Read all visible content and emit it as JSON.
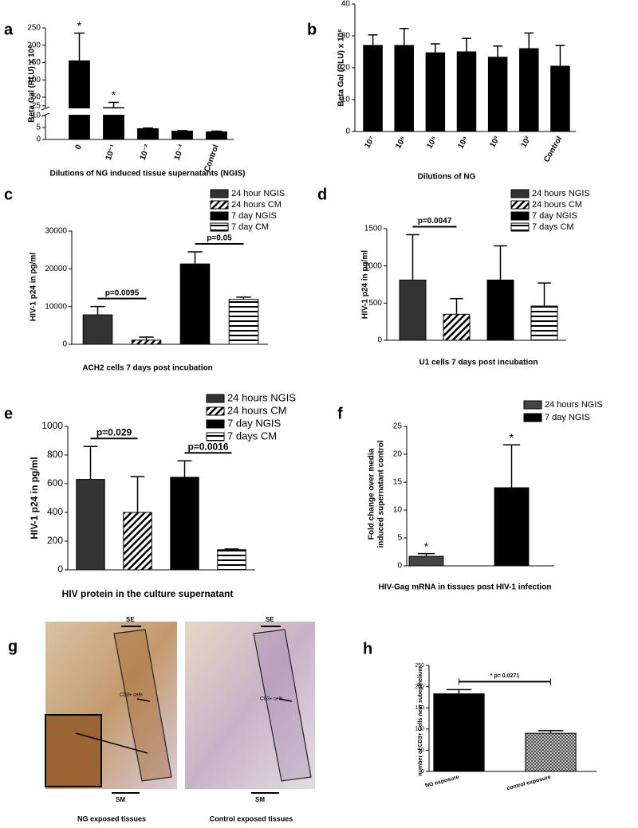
{
  "chart_data": [
    {
      "type": "bar",
      "label": "a",
      "ylabel": "Beta Gal (RLU) x 10⁶",
      "xlabel": "Dilutions of NG induced tissue supernatants (NGIS)",
      "categories": [
        "0",
        "10⁻¹",
        "10⁻²",
        "10⁻³",
        "Control"
      ],
      "values": [
        155,
        20,
        4.5,
        3.5,
        3.2
      ],
      "errors": [
        80,
        15,
        0.3,
        0.2,
        0.3
      ],
      "color": "#000000",
      "ylim": [
        0,
        250
      ],
      "ybreak": [
        10,
        20
      ],
      "yticks": [
        0,
        5,
        10,
        25,
        50,
        100,
        150,
        200,
        250
      ],
      "annotations": [
        {
          "text": "*",
          "bar": 0
        },
        {
          "text": "*",
          "bar": 1
        }
      ]
    },
    {
      "type": "bar",
      "label": "b",
      "ylabel": "Beta Gal (RLU) x 10⁶",
      "xlabel": "Dilutions of NG",
      "categories": [
        "10⁷",
        "10⁶",
        "10⁵",
        "10⁴",
        "10³",
        "10²",
        "Control"
      ],
      "values": [
        27,
        27,
        24.7,
        25,
        23.3,
        26,
        20.5
      ],
      "errors": [
        3.3,
        5.3,
        2.8,
        4.2,
        3.5,
        4.9,
        6.5
      ],
      "color": "#000000",
      "ylim": [
        0,
        40
      ],
      "yticks": [
        0,
        10,
        20,
        30,
        40
      ]
    },
    {
      "type": "bar",
      "label": "c",
      "ylabel": "HIV-1 p24 in pg/ml",
      "xlabel": "ACH2 cells 7 days post incubation",
      "series": [
        {
          "name": "24 hour NGIS",
          "color": "#333333",
          "pattern": "solid",
          "values": [
            7800
          ],
          "errors": [
            2200
          ]
        },
        {
          "name": "24 hours CM",
          "color": "#000000",
          "pattern": "diagonal",
          "values": [
            1100
          ],
          "errors": [
            800
          ]
        },
        {
          "name": "7 day NGIS",
          "color": "#000000",
          "pattern": "solid",
          "values": [
            21300
          ],
          "errors": [
            3200
          ]
        },
        {
          "name": "7 day CM",
          "color": "#000000",
          "pattern": "horizontal",
          "values": [
            11900
          ],
          "errors": [
            600
          ]
        }
      ],
      "ylim": [
        0,
        30000
      ],
      "yticks": [
        0,
        10000,
        20000,
        30000
      ],
      "brackets": [
        {
          "from": 0,
          "to": 1,
          "label": "p=0.0095"
        },
        {
          "from": 2,
          "to": 3,
          "label": "p=0.05"
        }
      ]
    },
    {
      "type": "bar",
      "label": "d",
      "ylabel": "HIV-1 p24 in pg/ml",
      "xlabel": "U1 cells 7 days post incubation",
      "series": [
        {
          "name": "24 hours  NGIS",
          "color": "#333333",
          "pattern": "solid",
          "values": [
            810
          ],
          "errors": [
            610
          ]
        },
        {
          "name": "24 hours CM",
          "color": "#000000",
          "pattern": "diagonal",
          "values": [
            350
          ],
          "errors": [
            210
          ]
        },
        {
          "name": "7 day  NGIS",
          "color": "#000000",
          "pattern": "solid",
          "values": [
            810
          ],
          "errors": [
            460
          ]
        },
        {
          "name": "7 days CM",
          "color": "#000000",
          "pattern": "horizontal",
          "values": [
            460
          ],
          "errors": [
            310
          ]
        }
      ],
      "ylim": [
        0,
        1500
      ],
      "yticks": [
        0,
        500,
        1000,
        1500
      ],
      "brackets": [
        {
          "from": 0,
          "to": 1,
          "label": "p=0.0047"
        }
      ]
    },
    {
      "type": "bar",
      "label": "e",
      "ylabel": "HIV-1 p24 in pg/ml",
      "xlabel": "HIV protein in the culture supernatant",
      "series": [
        {
          "name": "24 hours  NGIS",
          "color": "#333333",
          "pattern": "solid",
          "values": [
            630
          ],
          "errors": [
            230
          ]
        },
        {
          "name": "24 hours CM",
          "color": "#000000",
          "pattern": "diagonal",
          "values": [
            400
          ],
          "errors": [
            250
          ]
        },
        {
          "name": "7 day NGIS",
          "color": "#000000",
          "pattern": "solid",
          "values": [
            645
          ],
          "errors": [
            115
          ]
        },
        {
          "name": "7 days CM",
          "color": "#000000",
          "pattern": "horizontal",
          "values": [
            140
          ],
          "errors": [
            5
          ]
        }
      ],
      "ylim": [
        0,
        1000
      ],
      "yticks": [
        0,
        200,
        400,
        600,
        800,
        1000
      ],
      "brackets": [
        {
          "from": 0,
          "to": 1,
          "label": "p=0.029"
        },
        {
          "from": 2,
          "to": 3,
          "label": "p=0.0016"
        }
      ]
    },
    {
      "type": "bar",
      "label": "f",
      "ylabel": [
        "Fold change over media",
        "induced supernatant control"
      ],
      "xlabel": "HIV-Gag mRNA in tissues post HIV-1 infection",
      "series": [
        {
          "name": "24 hours NGIS",
          "color": "#444444",
          "pattern": "solid",
          "values": [
            1.7
          ],
          "errors": [
            0.5
          ]
        },
        {
          "name": "7 day NGIS",
          "color": "#000000",
          "pattern": "solid",
          "values": [
            14
          ],
          "errors": [
            7.7
          ]
        }
      ],
      "ylim": [
        0,
        25
      ],
      "yticks": [
        0,
        5,
        10,
        15,
        20,
        25
      ],
      "annotations": [
        {
          "text": "*",
          "bar": 0
        },
        {
          "text": "*",
          "bar": 1
        }
      ]
    },
    {
      "type": "bar",
      "label": "h",
      "ylabel": "number of CD3+ Cells near subepthelium",
      "categories": [
        "NG exposure",
        "control exposure"
      ],
      "values": [
        183,
        90
      ],
      "errors": [
        10,
        6
      ],
      "colors": [
        "#000000",
        "#888888"
      ],
      "patterns": [
        "solid",
        "checker"
      ],
      "ylim": [
        0,
        250
      ],
      "yticks": [
        0,
        50,
        100,
        150,
        200,
        250
      ],
      "brackets": [
        {
          "from": 0,
          "to": 1,
          "label": "* p= 0.0271"
        }
      ]
    }
  ],
  "image_panel": {
    "label": "g",
    "captions": [
      "NG exposed tissues",
      "Control exposed tissues"
    ],
    "annotations": [
      "SE",
      "SM",
      "CD3+ cells",
      "SE",
      "SM",
      "CD3+ cells"
    ]
  }
}
